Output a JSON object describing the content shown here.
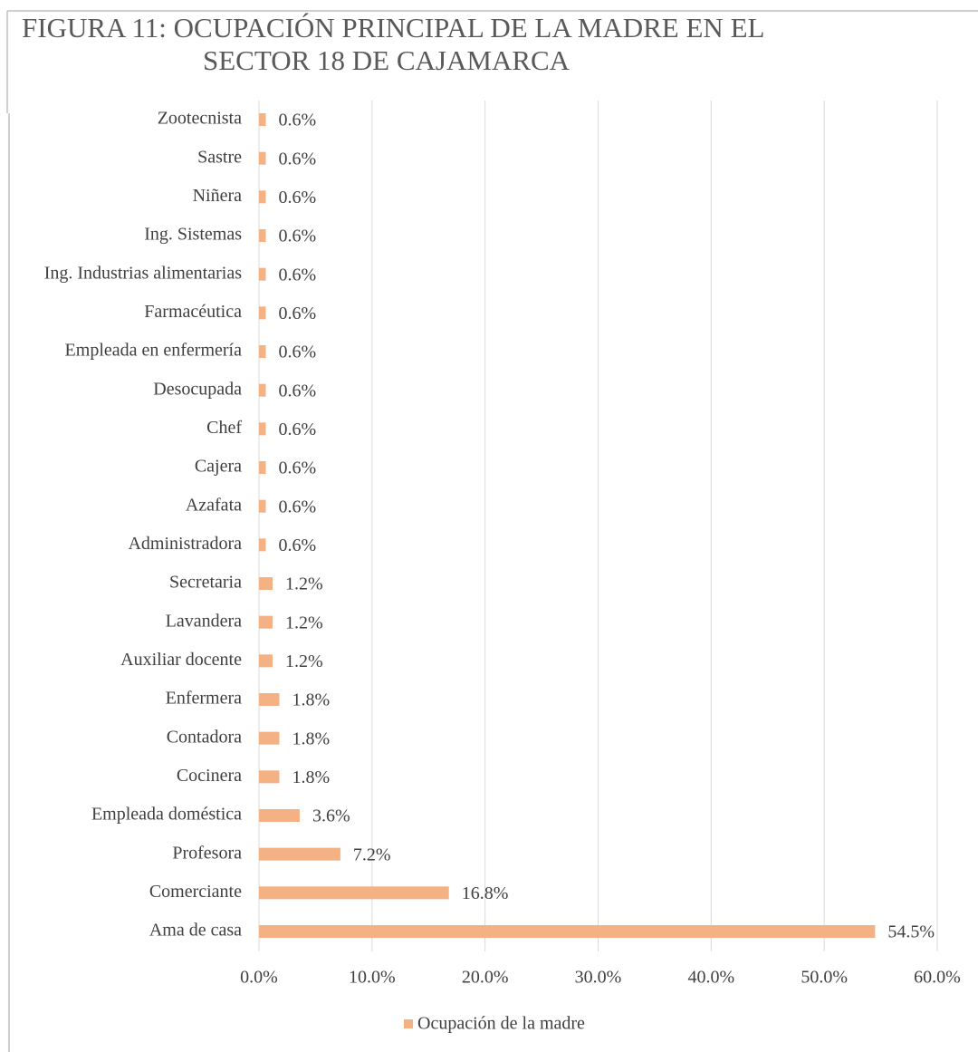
{
  "chart_data": {
    "type": "bar",
    "orientation": "horizontal",
    "title": [
      "FIGURA 11: OCUPACIÓN PRINCIPAL DE LA MADRE EN EL",
      "SECTOR 18 DE CAJAMARCA"
    ],
    "categories": [
      "Zootecnista",
      "Sastre",
      "Niñera",
      "Ing. Sistemas",
      "Ing. Industrias alimentarias",
      "Farmacéutica",
      "Empleada en enfermería",
      "Desocupada",
      "Chef",
      "Cajera",
      "Azafata",
      "Administradora",
      "Secretaria",
      "Lavandera",
      "Auxiliar docente",
      "Enfermera",
      "Contadora",
      "Cocinera",
      "Empleada doméstica",
      "Profesora",
      "Comerciante",
      "Ama de casa"
    ],
    "series": [
      {
        "name": "Ocupación de la madre",
        "color": "#f4b183",
        "values": [
          0.6,
          0.6,
          0.6,
          0.6,
          0.6,
          0.6,
          0.6,
          0.6,
          0.6,
          0.6,
          0.6,
          0.6,
          1.2,
          1.2,
          1.2,
          1.8,
          1.8,
          1.8,
          3.6,
          7.2,
          16.8,
          54.5
        ],
        "value_labels": [
          "0.6%",
          "0.6%",
          "0.6%",
          "0.6%",
          "0.6%",
          "0.6%",
          "0.6%",
          "0.6%",
          "0.6%",
          "0.6%",
          "0.6%",
          "0.6%",
          "1.2%",
          "1.2%",
          "1.2%",
          "1.8%",
          "1.8%",
          "1.8%",
          "3.6%",
          "7.2%",
          "16.8%",
          "54.5%"
        ]
      }
    ],
    "xlim": [
      0,
      60
    ],
    "xticks": [
      {
        "value": 0,
        "label": "0.0%"
      },
      {
        "value": 10,
        "label": "10.0%"
      },
      {
        "value": 20,
        "label": "20.0%"
      },
      {
        "value": 30,
        "label": "30.0%"
      },
      {
        "value": 40,
        "label": "40.0%"
      },
      {
        "value": 50,
        "label": "50.0%"
      },
      {
        "value": 60,
        "label": "60.0%"
      }
    ],
    "grid": true,
    "legend": "bottom"
  }
}
